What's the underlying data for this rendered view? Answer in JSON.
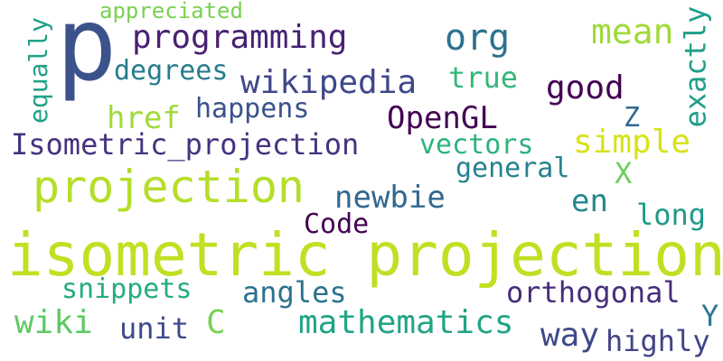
{
  "word_cloud": {
    "words": [
      {
        "text": "p",
        "color": "#3b528b"
      },
      {
        "text": "isometric projection",
        "color": "#c2df23"
      },
      {
        "text": "projection",
        "color": "#b5de2b"
      },
      {
        "text": "programming",
        "color": "#482173"
      },
      {
        "text": "wikipedia",
        "color": "#3f4889"
      },
      {
        "text": "OpenGL",
        "color": "#440154"
      },
      {
        "text": "Isometric_projection",
        "color": "#46327e"
      },
      {
        "text": "good",
        "color": "#440154"
      },
      {
        "text": "org",
        "color": "#2c728e"
      },
      {
        "text": "mean",
        "color": "#a0da39"
      },
      {
        "text": "exactly",
        "color": "#1f9e89"
      },
      {
        "text": "degrees",
        "color": "#287c8e"
      },
      {
        "text": "true",
        "color": "#35b779"
      },
      {
        "text": "href",
        "color": "#a0da39"
      },
      {
        "text": "happens",
        "color": "#3b528b"
      },
      {
        "text": "equally",
        "color": "#1fa187"
      },
      {
        "text": "Z",
        "color": "#31688e"
      },
      {
        "text": "vectors",
        "color": "#2db27d"
      },
      {
        "text": "simple",
        "color": "#d8e219"
      },
      {
        "text": "general",
        "color": "#26828e"
      },
      {
        "text": "X",
        "color": "#6ece58"
      },
      {
        "text": "newbie",
        "color": "#31688e"
      },
      {
        "text": "en",
        "color": "#23888e"
      },
      {
        "text": "long",
        "color": "#1f9a8a"
      },
      {
        "text": "Code",
        "color": "#440154"
      },
      {
        "text": "snippets",
        "color": "#25ab82"
      },
      {
        "text": "angles",
        "color": "#2c728e"
      },
      {
        "text": "orthogonal",
        "color": "#472d7b"
      },
      {
        "text": "wiki",
        "color": "#5ec962"
      },
      {
        "text": "unit",
        "color": "#3e4989"
      },
      {
        "text": "C",
        "color": "#7ad151"
      },
      {
        "text": "mathematics",
        "color": "#20a486"
      },
      {
        "text": "Y",
        "color": "#2a788e"
      },
      {
        "text": "way",
        "color": "#3e4989"
      },
      {
        "text": "highly",
        "color": "#414487"
      },
      {
        "text": "appreciated",
        "color": "#7ad151"
      }
    ]
  }
}
